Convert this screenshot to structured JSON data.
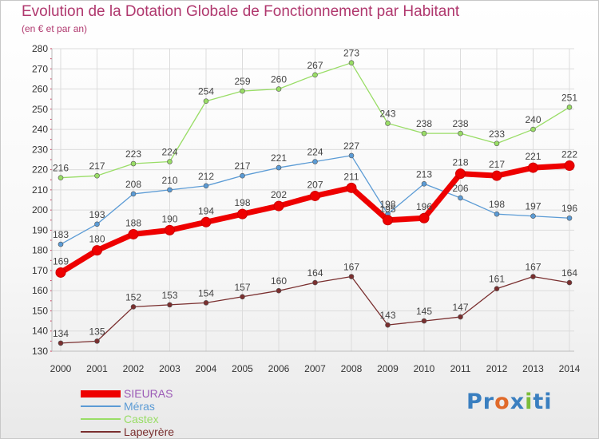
{
  "header": {
    "title": "Evolution de la Dotation Globale de Fonctionnement par Habitant",
    "subtitle": "(en € et par an)"
  },
  "colors": {
    "title": "#b0386e",
    "grid": "#dcdcdc",
    "axis_text": "#333333",
    "label_text": "#444444"
  },
  "logo": {
    "text": "Proxiti",
    "colors": [
      "#3a7fc0",
      "#3a7fc0",
      "#e06a2a",
      "#3a7fc0",
      "#7cbd3a",
      "#3a7fc0",
      "#3a7fc0"
    ]
  },
  "chart_data": {
    "type": "line",
    "title": "Evolution de la Dotation Globale de Fonctionnement par Habitant",
    "subtitle": "(en € et par an)",
    "x": [
      "2000",
      "2001",
      "2002",
      "2003",
      "2004",
      "2005",
      "2006",
      "2007",
      "2008",
      "2009",
      "2010",
      "2011",
      "2012",
      "2013",
      "2014"
    ],
    "ylim": [
      130,
      280
    ],
    "yticks": [
      130,
      140,
      150,
      160,
      170,
      180,
      190,
      200,
      210,
      220,
      230,
      240,
      250,
      260,
      270,
      280
    ],
    "grid": true,
    "legend_position": "bottom-left",
    "series": [
      {
        "name": "SIEURAS",
        "color": "#ee0000",
        "label_color": "#9b59b6",
        "emphasis": true,
        "values": [
          169,
          180,
          188,
          190,
          194,
          198,
          202,
          207,
          211,
          195,
          196,
          218,
          217,
          221,
          222
        ],
        "data_labels": [
          "169",
          "180",
          "188",
          "190",
          "194",
          "198",
          "202",
          "207",
          "211",
          "195",
          "196",
          "218",
          "217",
          "221",
          "222"
        ]
      },
      {
        "name": "Méras",
        "color": "#5b9bd5",
        "label_color": "#5b9bd5",
        "values": [
          183,
          193,
          208,
          210,
          212,
          217,
          221,
          224,
          227,
          198,
          213,
          206,
          198,
          197,
          196
        ],
        "data_labels": [
          "183",
          "193",
          "208",
          "210",
          "212",
          "217",
          "221",
          "224",
          "227",
          "198",
          "213",
          "206",
          "198",
          "197",
          "196"
        ]
      },
      {
        "name": "Castex",
        "color": "#99dd66",
        "label_color": "#99dd66",
        "values": [
          216,
          217,
          223,
          224,
          254,
          259,
          260,
          267,
          273,
          243,
          238,
          238,
          233,
          240,
          251
        ],
        "data_labels": [
          "216",
          "217",
          "223",
          "224",
          "254",
          "259",
          "260",
          "267",
          "273",
          "243",
          "238",
          "238",
          "233",
          "240",
          "251"
        ]
      },
      {
        "name": "Lapeyrère",
        "color": "#7a2f2f",
        "label_color": "#7a2f2f",
        "values": [
          134,
          135,
          152,
          153,
          154,
          157,
          160,
          164,
          167,
          143,
          145,
          147,
          161,
          167,
          164
        ],
        "data_labels": [
          "134",
          "135",
          "152",
          "153",
          "154",
          "157",
          "160",
          "164",
          "167",
          "143",
          "145",
          "147",
          "161",
          "167",
          "164"
        ]
      }
    ]
  }
}
